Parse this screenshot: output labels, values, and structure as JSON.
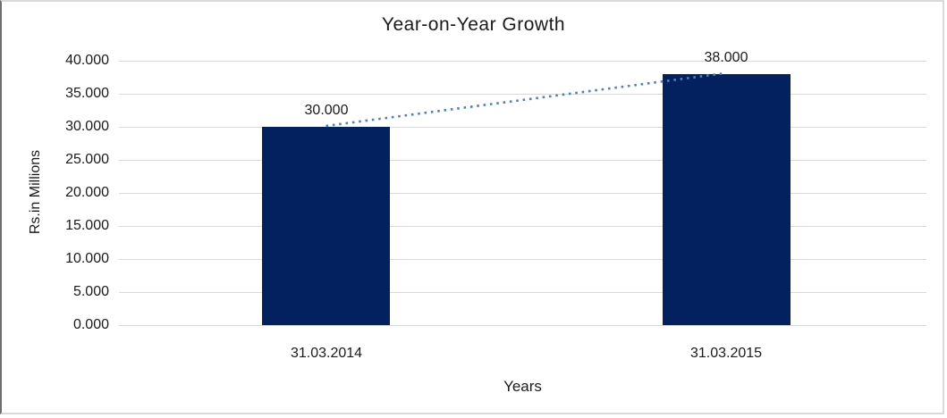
{
  "chart_data": {
    "type": "bar",
    "title": "Year-on-Year Growth",
    "categories": [
      "31.03.2014",
      "31.03.2015"
    ],
    "values": [
      30.0,
      38.0
    ],
    "data_labels": [
      "30.000",
      "38.000"
    ],
    "xlabel": "Years",
    "ylabel": "Rs.in Millions",
    "ylim": [
      0,
      40
    ],
    "ytick_step": 5,
    "ytick_labels": [
      "0.000",
      "5.000",
      "10.000",
      "15.000",
      "20.000",
      "25.000",
      "30.000",
      "35.000",
      "40.000"
    ],
    "grid": true,
    "legend_position": "none",
    "trendline": {
      "type": "linear",
      "style": "dotted"
    },
    "colors": {
      "bar": "#03215f",
      "gridline": "#d9d9d9",
      "trendline": "#4f81bd",
      "text": "#1a1a1a",
      "border_light": "#d9d9d9",
      "border_dark": "#6e6e6e"
    }
  }
}
